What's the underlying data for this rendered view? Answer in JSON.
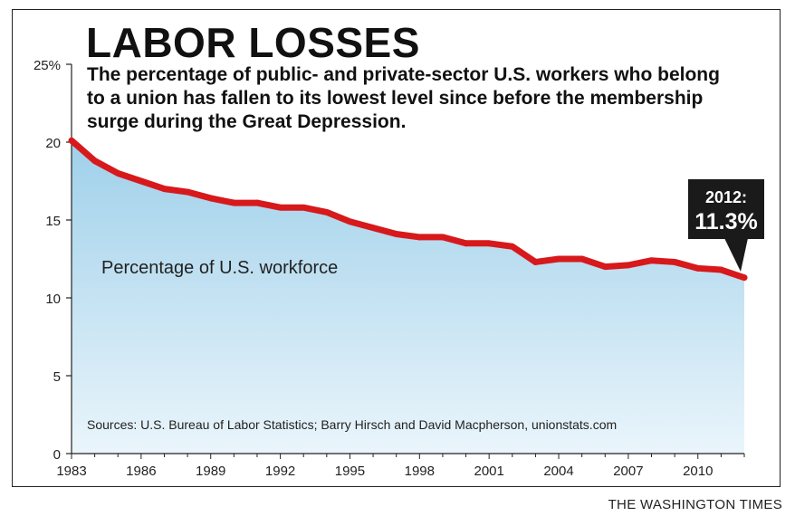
{
  "header": {
    "title": "LABOR LOSSES",
    "subtitle": "The percentage of public- and private-sector U.S. workers who belong to a union has fallen to its lowest level since before the membership surge during the Great Depression."
  },
  "footer": {
    "credit": "THE WASHINGTON TIMES"
  },
  "colors": {
    "line": "#d7191c",
    "area_top": "#9fd0ea",
    "area_bottom": "#eaf5fb",
    "callout": "#1a1a1a"
  },
  "chart_data": {
    "type": "area",
    "title": "LABOR LOSSES",
    "xlabel": "",
    "ylabel": "",
    "ylim": [
      0,
      25
    ],
    "xlim": [
      1983,
      2012
    ],
    "y_ticks": [
      0,
      5,
      10,
      15,
      20,
      25
    ],
    "y_tick_labels": [
      "0",
      "5",
      "10",
      "15",
      "20",
      "25%"
    ],
    "x_ticks": [
      1983,
      1986,
      1989,
      1992,
      1995,
      1998,
      2001,
      2004,
      2007,
      2010
    ],
    "x_tick_labels": [
      "1983",
      "1986",
      "1989",
      "1992",
      "1995",
      "1998",
      "2001",
      "2004",
      "2007",
      "2010"
    ],
    "grid": false,
    "series": [
      {
        "name": "Percentage of U.S. workforce",
        "x": [
          1983,
          1984,
          1985,
          1986,
          1987,
          1988,
          1989,
          1990,
          1991,
          1992,
          1993,
          1994,
          1995,
          1996,
          1997,
          1998,
          1999,
          2000,
          2001,
          2002,
          2003,
          2004,
          2005,
          2006,
          2007,
          2008,
          2009,
          2010,
          2011,
          2012
        ],
        "values": [
          20.1,
          18.8,
          18.0,
          17.5,
          17.0,
          16.8,
          16.4,
          16.1,
          16.1,
          15.8,
          15.8,
          15.5,
          14.9,
          14.5,
          14.1,
          13.9,
          13.9,
          13.5,
          13.5,
          13.3,
          12.3,
          12.5,
          12.5,
          12.0,
          12.1,
          12.4,
          12.3,
          11.9,
          11.8,
          11.3
        ]
      }
    ],
    "annotations": {
      "callout_year": "2012:",
      "callout_value": "11.3%",
      "source": "Sources: U.S. Bureau of Labor Statistics; Barry Hirsch and David Macpherson, unionstats.com"
    }
  }
}
